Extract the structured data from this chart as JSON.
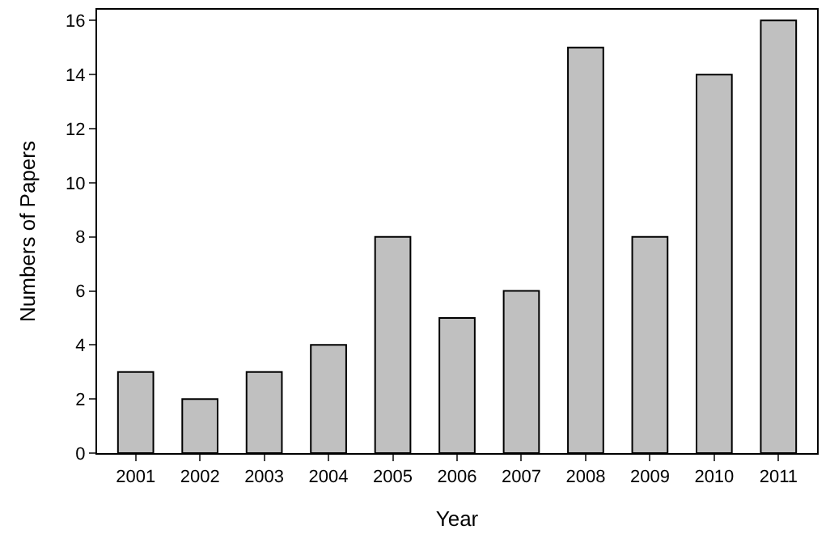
{
  "chart_data": {
    "type": "bar",
    "xlabel": "Year",
    "ylabel": "Numbers of Papers",
    "categories": [
      "2001",
      "2002",
      "2003",
      "2004",
      "2005",
      "2006",
      "2007",
      "2008",
      "2009",
      "2010",
      "2011"
    ],
    "values": [
      3,
      2,
      3,
      4,
      8,
      5,
      6,
      15,
      8,
      14,
      16
    ],
    "color": "#c0c0c0",
    "ylim": [
      0,
      16.4
    ],
    "yticks": [
      0,
      2,
      4,
      6,
      8,
      10,
      12,
      14,
      16
    ]
  }
}
